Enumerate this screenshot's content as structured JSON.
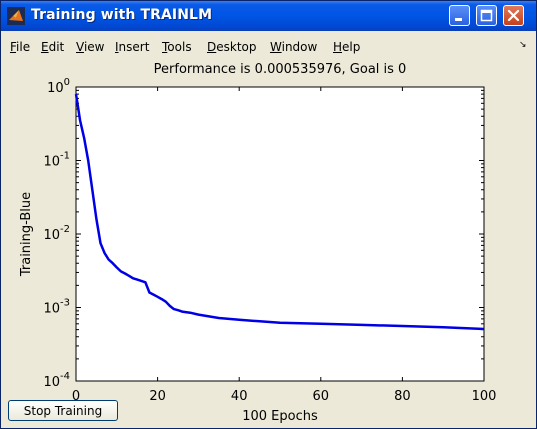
{
  "window": {
    "title": "Training with TRAINLM",
    "app_icon": "matlab-icon",
    "controls": [
      "minimize",
      "maximize",
      "close"
    ]
  },
  "menu": [
    "File",
    "Edit",
    "View",
    "Insert",
    "Tools",
    "Desktop",
    "Window",
    "Help"
  ],
  "plot": {
    "title": "Performance is 0.000535976, Goal is 0",
    "line_color": "#0000e6"
  },
  "stop_button_label": "Stop Training",
  "chart_data": {
    "type": "line",
    "title": "Performance is 0.000535976, Goal is 0",
    "xlabel": "100 Epochs",
    "ylabel": "Training-Blue",
    "xlim": [
      0,
      100
    ],
    "ylim": [
      0.0001,
      1
    ],
    "yscale": "log",
    "xticks": [
      "0",
      "20",
      "40",
      "60",
      "80",
      "100"
    ],
    "yticks": [
      {
        "base": "10",
        "exp": "0"
      },
      {
        "base": "10",
        "exp": "-1"
      },
      {
        "base": "10",
        "exp": "-2"
      },
      {
        "base": "10",
        "exp": "-3"
      },
      {
        "base": "10",
        "exp": "-4"
      }
    ],
    "grid": false,
    "series": [
      {
        "color": "#0000e6",
        "x": [
          0,
          1,
          2,
          3,
          4,
          5,
          6,
          7,
          8,
          9,
          10,
          11,
          12,
          13,
          14,
          15,
          16,
          17,
          18,
          19,
          20,
          21,
          22,
          23,
          24,
          25,
          26,
          28,
          30,
          35,
          40,
          45,
          50,
          60,
          70,
          80,
          90,
          100
        ],
        "y": [
          0.8,
          0.35,
          0.2,
          0.1,
          0.04,
          0.016,
          0.0075,
          0.0055,
          0.0045,
          0.004,
          0.0035,
          0.0031,
          0.0029,
          0.0027,
          0.0025,
          0.0024,
          0.0023,
          0.0022,
          0.0016,
          0.0015,
          0.0014,
          0.0013,
          0.0012,
          0.00105,
          0.00095,
          0.00092,
          0.00088,
          0.00085,
          0.0008,
          0.00072,
          0.00068,
          0.00065,
          0.00062,
          0.0006,
          0.00058,
          0.00056,
          0.00054,
          0.00051
        ]
      }
    ]
  }
}
